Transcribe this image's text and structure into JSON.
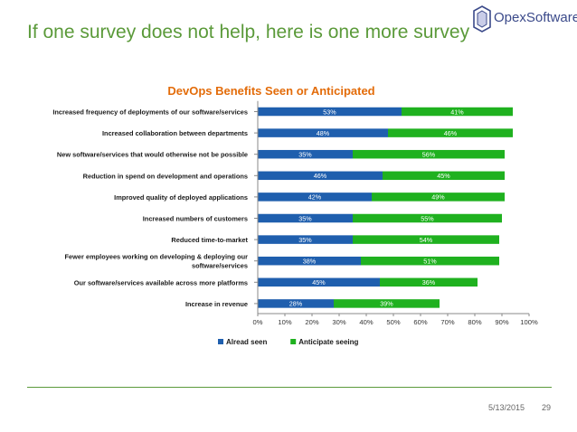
{
  "slide": {
    "title": "If one survey does not help, here is one more survey",
    "logo_text": "OpexSoftware",
    "date": "5/13/2015",
    "page_number": "29",
    "colors": {
      "title": "#5b9a3a",
      "rule": "#5b9a3a",
      "logo": "#3b4a8a"
    }
  },
  "chart_data": {
    "type": "bar",
    "orientation": "horizontal",
    "stacked": true,
    "title": "DevOps Benefits Seen or Anticipated",
    "title_color": "#e36c0a",
    "categories": [
      [
        "Increased frequency of deployments of our software/services"
      ],
      [
        "Increased collaboration between departments"
      ],
      [
        "New software/services that would otherwise not be possible"
      ],
      [
        "Reduction in spend on development and operations"
      ],
      [
        "Improved quality of deployed applications"
      ],
      [
        "Increased numbers of customers"
      ],
      [
        "Reduced time-to-market"
      ],
      [
        "Fewer employees working on developing & deploying our",
        "software/services"
      ],
      [
        "Our software/services available across more platforms"
      ],
      [
        "Increase in revenue"
      ]
    ],
    "series": [
      {
        "name": "Alread seen",
        "color": "#1f5fae",
        "values": [
          53,
          48,
          35,
          46,
          42,
          35,
          35,
          38,
          45,
          28
        ]
      },
      {
        "name": "Anticipate seeing",
        "color": "#1fb11f",
        "values": [
          41,
          46,
          56,
          45,
          49,
          55,
          54,
          51,
          36,
          39
        ]
      }
    ],
    "value_suffix": "%",
    "xlim": [
      0,
      100
    ],
    "xticks": [
      "0%",
      "10%",
      "20%",
      "30%",
      "40%",
      "50%",
      "60%",
      "70%",
      "80%",
      "90%",
      "100%"
    ],
    "xlabel": "",
    "ylabel": "",
    "grid": false,
    "legend_position": "bottom"
  }
}
